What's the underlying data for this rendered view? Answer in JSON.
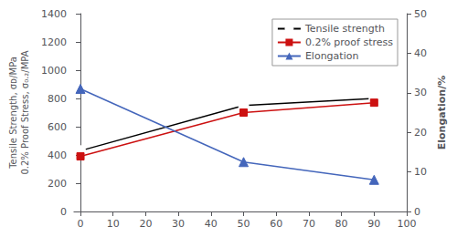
{
  "chart_data": {
    "type": "line",
    "x": [
      0,
      50,
      90
    ],
    "xlim": [
      -2,
      100
    ],
    "xticks": [
      0,
      10,
      20,
      30,
      40,
      50,
      60,
      70,
      80,
      90,
      100
    ],
    "ylim": [
      0,
      1400
    ],
    "yticks": [
      0,
      200,
      400,
      600,
      800,
      1000,
      1200,
      1400
    ],
    "y2lim": [
      0,
      50
    ],
    "y2ticks": [
      0,
      10,
      20,
      30,
      40,
      50
    ],
    "ylabel": "Tensile Strength, σᴅ/MPa\n0.2% Proof Stress, σ₀.₂/MPA",
    "y2label": "Elongation/%",
    "legend": "upper right",
    "grid": false,
    "series": [
      {
        "name": "Tensile strength",
        "color": "#000000",
        "marker": "circle",
        "values": [
          430,
          750,
          800
        ]
      },
      {
        "name": "0.2% proof stress",
        "color": "#cc1111",
        "marker": "square",
        "values": [
          390,
          700,
          770
        ]
      },
      {
        "name": "Elongation",
        "color": "#4466bb",
        "marker": "triangle",
        "values": [
          31,
          12.5,
          8
        ],
        "axis": "y2"
      }
    ]
  }
}
